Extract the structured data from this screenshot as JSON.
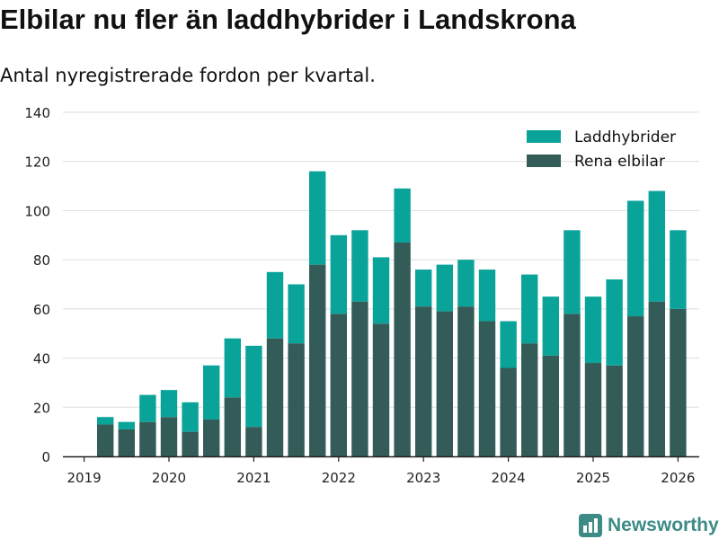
{
  "title": "Elbilar nu fler än laddhybrider i Landskrona",
  "subtitle": "Antal nyregistrerade fordon per kvartal.",
  "brand": "Newsworthy",
  "colors": {
    "laddhybrider": "#0aa39a",
    "rena_elbilar": "#335c58",
    "grid": "#dddddd",
    "axis": "#222222",
    "tick_text": "#222222",
    "brand": "#3d8b86"
  },
  "chart_data": {
    "type": "bar",
    "stacked": true,
    "title": "Elbilar nu fler än laddhybrider i Landskrona",
    "subtitle": "Antal nyregistrerade fordon per kvartal.",
    "xlabel": "",
    "ylabel": "",
    "ylim": [
      0,
      140
    ],
    "yticks": [
      "0",
      "20",
      "40",
      "60",
      "80",
      "100",
      "120",
      "140"
    ],
    "x_range": [
      2018.75,
      2026.25
    ],
    "xticks": [
      "2019",
      "2020",
      "2021",
      "2022",
      "2023",
      "2024",
      "2025",
      "2026"
    ],
    "grid": true,
    "legend_position": "top-right",
    "categories": [
      "2019 Q2",
      "2019 Q3",
      "2019 Q4",
      "2020 Q1",
      "2020 Q2",
      "2020 Q3",
      "2020 Q4",
      "2021 Q1",
      "2021 Q2",
      "2021 Q3",
      "2021 Q4",
      "2022 Q1",
      "2022 Q2",
      "2022 Q3",
      "2022 Q4",
      "2023 Q1",
      "2023 Q2",
      "2023 Q3",
      "2023 Q4",
      "2024 Q1",
      "2024 Q2",
      "2024 Q3",
      "2024 Q4",
      "2025 Q1",
      "2025 Q2",
      "2025 Q3",
      "2025 Q4",
      "2026 Q1"
    ],
    "x": [
      2019.25,
      2019.5,
      2019.75,
      2020.0,
      2020.25,
      2020.5,
      2020.75,
      2021.0,
      2021.25,
      2021.5,
      2021.75,
      2022.0,
      2022.25,
      2022.5,
      2022.75,
      2023.0,
      2023.25,
      2023.5,
      2023.75,
      2024.0,
      2024.25,
      2024.5,
      2024.75,
      2025.0,
      2025.25,
      2025.5,
      2025.75,
      2026.0
    ],
    "series": [
      {
        "name": "Rena elbilar",
        "values": [
          13,
          11,
          14,
          16,
          10,
          15,
          24,
          12,
          48,
          46,
          78,
          58,
          63,
          54,
          87,
          61,
          59,
          61,
          55,
          36,
          46,
          41,
          58,
          38,
          37,
          57,
          63,
          60
        ]
      },
      {
        "name": "Laddhybrider",
        "values": [
          3,
          3,
          11,
          11,
          12,
          22,
          24,
          33,
          27,
          24,
          38,
          32,
          29,
          27,
          22,
          15,
          19,
          19,
          21,
          19,
          28,
          24,
          34,
          27,
          35,
          47,
          45,
          32
        ]
      }
    ],
    "legend": [
      "Laddhybrider",
      "Rena elbilar"
    ]
  }
}
